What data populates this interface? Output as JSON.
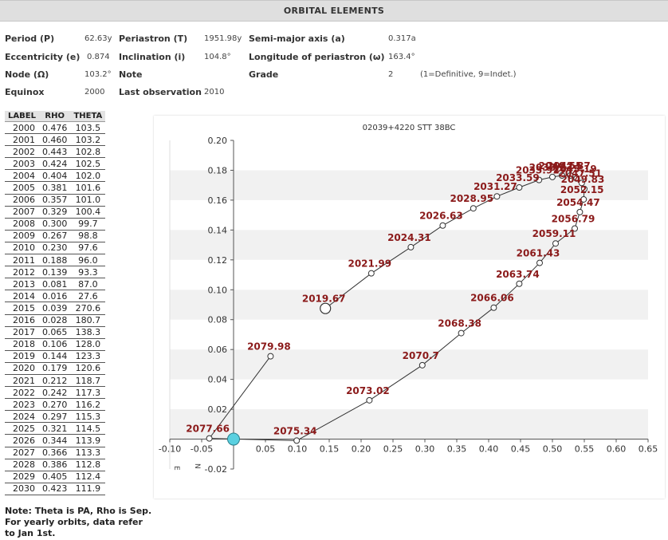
{
  "header": {
    "title": "ORBITAL ELEMENTS"
  },
  "elements": {
    "period_label": "Period (P)",
    "period_value": "62.63y",
    "periastron_label": "Periastron (T)",
    "periastron_value": "1951.98y",
    "semimajor_label": "Semi-major axis (a)",
    "semimajor_value": "0.317a",
    "eccentricity_label": "Eccentricity (e)",
    "eccentricity_value": "0.874",
    "inclination_label": "Inclination (i)",
    "inclination_value": "104.8°",
    "longitude_label": "Longitude of periastron (ω)",
    "longitude_value": "163.4°",
    "node_label": "Node (Ω)",
    "node_value": "103.2°",
    "note_label": "Note",
    "grade_label": "Grade",
    "grade_value": "2",
    "grade_note": "(1=Definitive, 9=Indet.)",
    "equinox_label": "Equinox",
    "equinox_value": "2000",
    "lastobs_label": "Last observation",
    "lastobs_value": "2010"
  },
  "ephemeris": {
    "headers": [
      "LABEL",
      "RHO",
      "THETA"
    ],
    "rows": [
      [
        "2000",
        "0.476",
        "103.5"
      ],
      [
        "2001",
        "0.460",
        "103.2"
      ],
      [
        "2002",
        "0.443",
        "102.8"
      ],
      [
        "2003",
        "0.424",
        "102.5"
      ],
      [
        "2004",
        "0.404",
        "102.0"
      ],
      [
        "2005",
        "0.381",
        "101.6"
      ],
      [
        "2006",
        "0.357",
        "101.0"
      ],
      [
        "2007",
        "0.329",
        "100.4"
      ],
      [
        "2008",
        "0.300",
        "99.7"
      ],
      [
        "2009",
        "0.267",
        "98.8"
      ],
      [
        "2010",
        "0.230",
        "97.6"
      ],
      [
        "2011",
        "0.188",
        "96.0"
      ],
      [
        "2012",
        "0.139",
        "93.3"
      ],
      [
        "2013",
        "0.081",
        "87.0"
      ],
      [
        "2014",
        "0.016",
        "27.6"
      ],
      [
        "2015",
        "0.039",
        "270.6"
      ],
      [
        "2016",
        "0.028",
        "180.7"
      ],
      [
        "2017",
        "0.065",
        "138.3"
      ],
      [
        "2018",
        "0.106",
        "128.0"
      ],
      [
        "2019",
        "0.144",
        "123.3"
      ],
      [
        "2020",
        "0.179",
        "120.6"
      ],
      [
        "2021",
        "0.212",
        "118.7"
      ],
      [
        "2022",
        "0.242",
        "117.3"
      ],
      [
        "2023",
        "0.270",
        "116.2"
      ],
      [
        "2024",
        "0.297",
        "115.3"
      ],
      [
        "2025",
        "0.321",
        "114.5"
      ],
      [
        "2026",
        "0.344",
        "113.9"
      ],
      [
        "2027",
        "0.366",
        "113.3"
      ],
      [
        "2028",
        "0.386",
        "112.8"
      ],
      [
        "2029",
        "0.405",
        "112.4"
      ],
      [
        "2030",
        "0.423",
        "111.9"
      ]
    ]
  },
  "footer": {
    "note": "Note: Theta is PA, Rho is Sep. For yearly orbits, data refer to Jan 1st."
  },
  "chart_data": {
    "type": "scatter",
    "title": "02039+4220  STT   38BC",
    "xlim": [
      -0.1,
      0.65
    ],
    "ylim": [
      -0.02,
      0.2
    ],
    "x_ticks": [
      "-0.10",
      "-0.05",
      "0.05",
      "0.10",
      "0.15",
      "0.20",
      "0.25",
      "0.30",
      "0.35",
      "0.40",
      "0.45",
      "0.50",
      "0.55",
      "0.60",
      "0.65"
    ],
    "x_tick_values": [
      -0.1,
      -0.05,
      0.05,
      0.1,
      0.15,
      0.2,
      0.25,
      0.3,
      0.35,
      0.4,
      0.45,
      0.5,
      0.55,
      0.6,
      0.65
    ],
    "y_ticks": [
      "-0.02",
      "0.02",
      "0.04",
      "0.06",
      "0.08",
      "0.10",
      "0.12",
      "0.14",
      "0.16",
      "0.18",
      "0.20"
    ],
    "y_tick_values": [
      -0.02,
      0.02,
      0.04,
      0.06,
      0.08,
      0.1,
      0.12,
      0.14,
      0.16,
      0.18,
      0.2
    ],
    "grid": "alternating horizontal bands",
    "compass": [
      "E",
      "N"
    ],
    "primary": {
      "x": 0.0,
      "y": 0.0,
      "color": "#5ad0e0"
    },
    "current_position": {
      "label": "2019.67",
      "x": 0.144,
      "y": 0.0875
    },
    "orbit_color": "#333333",
    "label_color": "#8b1a1a",
    "points": [
      {
        "label": "2019.67",
        "x": 0.144,
        "y": 0.0875
      },
      {
        "label": "2021.99",
        "x": 0.216,
        "y": 0.111
      },
      {
        "label": "2024.31",
        "x": 0.278,
        "y": 0.1285
      },
      {
        "label": "2026.63",
        "x": 0.328,
        "y": 0.143
      },
      {
        "label": "2028.95",
        "x": 0.376,
        "y": 0.1545
      },
      {
        "label": "2031.27",
        "x": 0.413,
        "y": 0.1625
      },
      {
        "label": "2033.59",
        "x": 0.448,
        "y": 0.1685
      },
      {
        "label": "2035.91",
        "x": 0.479,
        "y": 0.1735
      },
      {
        "label": "2038.23",
        "x": 0.5,
        "y": 0.1755
      },
      {
        "label": "2040.55",
        "x": 0.515,
        "y": 0.1765
      },
      {
        "label": "2042.87",
        "x": 0.528,
        "y": 0.1765
      },
      {
        "label": "2045.19",
        "x": 0.538,
        "y": 0.1745
      },
      {
        "label": "2047.51",
        "x": 0.546,
        "y": 0.1715
      },
      {
        "label": "2049.83",
        "x": 0.55,
        "y": 0.1675
      },
      {
        "label": "2052.15",
        "x": 0.549,
        "y": 0.1605
      },
      {
        "label": "2054.47",
        "x": 0.543,
        "y": 0.152
      },
      {
        "label": "2056.79",
        "x": 0.535,
        "y": 0.141
      },
      {
        "label": "2059.11",
        "x": 0.505,
        "y": 0.131
      },
      {
        "label": "2061.43",
        "x": 0.48,
        "y": 0.118
      },
      {
        "label": "2063.74",
        "x": 0.448,
        "y": 0.104
      },
      {
        "label": "2066.06",
        "x": 0.408,
        "y": 0.088
      },
      {
        "label": "2068.38",
        "x": 0.357,
        "y": 0.071
      },
      {
        "label": "2070.7",
        "x": 0.296,
        "y": 0.0495
      },
      {
        "label": "2073.02",
        "x": 0.213,
        "y": 0.026
      },
      {
        "label": "2075.34",
        "x": 0.099,
        "y": -0.001
      },
      {
        "label": "2077.66",
        "x": -0.038,
        "y": 0.0005
      },
      {
        "label": "2079.98",
        "x": 0.058,
        "y": 0.0555
      }
    ]
  }
}
